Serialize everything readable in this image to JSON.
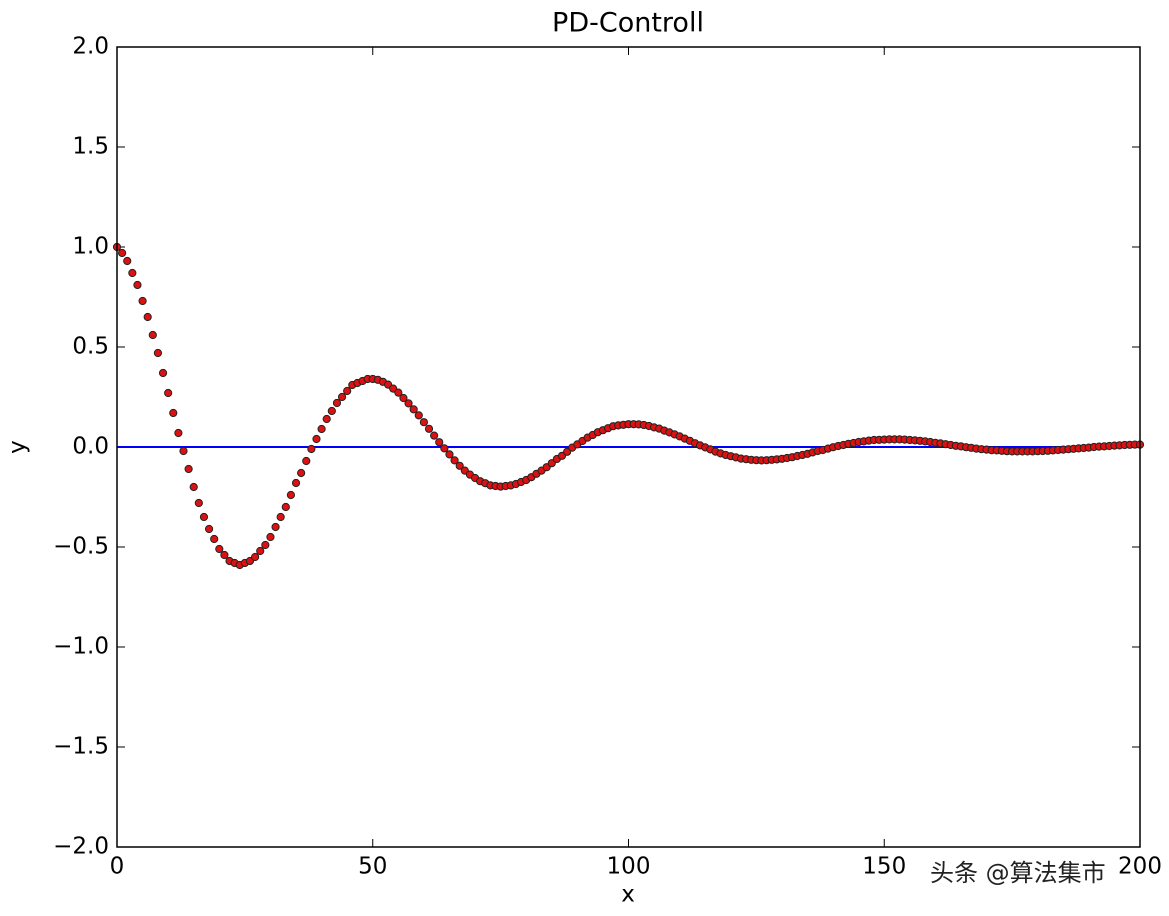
{
  "chart_data": {
    "type": "scatter",
    "title": "PD-Controll",
    "x_label": "x",
    "y_label": "y",
    "watermark": "头条 @算法集市",
    "xlim": [
      0,
      200
    ],
    "ylim": [
      -2,
      2
    ],
    "xticks": [
      0,
      50,
      100,
      150,
      200
    ],
    "yticks": [
      {
        "value": -2,
        "label": "−2.0"
      },
      {
        "value": -1.5,
        "label": "−1.5"
      },
      {
        "value": -1,
        "label": "−1.0"
      },
      {
        "value": -0.5,
        "label": "−0.5"
      },
      {
        "value": 0,
        "label": "0.0"
      },
      0.5,
      {
        "value": 1,
        "label": "1.0"
      },
      1.5,
      {
        "value": 2,
        "label": "2.0"
      }
    ],
    "reference_line": {
      "y": 0,
      "color": "#0000ff"
    },
    "marker_color": "#dd1111",
    "marker_edge_color": "#222222",
    "x": [
      0,
      1,
      2,
      3,
      4,
      5,
      6,
      7,
      8,
      9,
      10,
      11,
      12,
      13,
      14,
      15,
      16,
      17,
      18,
      19,
      20,
      21,
      22,
      23,
      24,
      25,
      26,
      27,
      28,
      29,
      30,
      31,
      32,
      33,
      34,
      35,
      36,
      37,
      38,
      39,
      40,
      41,
      42,
      43,
      44,
      45,
      46,
      47,
      48,
      49,
      50,
      51,
      52,
      53,
      54,
      55,
      56,
      57,
      58,
      59,
      60,
      61,
      62,
      63,
      64,
      65,
      66,
      67,
      68,
      69,
      70,
      71,
      72,
      73,
      74,
      75,
      76,
      77,
      78,
      79,
      80,
      81,
      82,
      83,
      84,
      85,
      86,
      87,
      88,
      89,
      90,
      91,
      92,
      93,
      94,
      95,
      96,
      97,
      98,
      99,
      100,
      101,
      102,
      103,
      104,
      105,
      106,
      107,
      108,
      109,
      110,
      111,
      112,
      113,
      114,
      115,
      116,
      117,
      118,
      119,
      120,
      121,
      122,
      123,
      124,
      125,
      126,
      127,
      128,
      129,
      130,
      131,
      132,
      133,
      134,
      135,
      136,
      137,
      138,
      139,
      140,
      141,
      142,
      143,
      144,
      145,
      146,
      147,
      148,
      149,
      150,
      151,
      152,
      153,
      154,
      155,
      156,
      157,
      158,
      159,
      160,
      161,
      162,
      163,
      164,
      165,
      166,
      167,
      168,
      169,
      170,
      171,
      172,
      173,
      174,
      175,
      176,
      177,
      178,
      179,
      180,
      181,
      182,
      183,
      184,
      185,
      186,
      187,
      188,
      189,
      190,
      191,
      192,
      193,
      194,
      195,
      196,
      197,
      198,
      199,
      200
    ],
    "values": [
      1.0,
      0.97,
      0.93,
      0.87,
      0.81,
      0.73,
      0.65,
      0.56,
      0.47,
      0.37,
      0.27,
      0.17,
      0.07,
      -0.02,
      -0.11,
      -0.2,
      -0.28,
      -0.35,
      -0.41,
      -0.46,
      -0.51,
      -0.54,
      -0.57,
      -0.58,
      -0.59,
      -0.58,
      -0.57,
      -0.55,
      -0.52,
      -0.49,
      -0.45,
      -0.4,
      -0.35,
      -0.3,
      -0.24,
      -0.18,
      -0.13,
      -0.07,
      -0.01,
      0.04,
      0.09,
      0.14,
      0.18,
      0.22,
      0.25,
      0.28,
      0.31,
      0.32,
      0.33,
      0.34,
      0.34,
      0.336,
      0.326,
      0.312,
      0.292,
      0.272,
      0.245,
      0.218,
      0.188,
      0.158,
      0.124,
      0.091,
      0.057,
      0.024,
      -0.007,
      -0.037,
      -0.067,
      -0.094,
      -0.118,
      -0.138,
      -0.155,
      -0.171,
      -0.181,
      -0.192,
      -0.195,
      -0.198,
      -0.195,
      -0.192,
      -0.185,
      -0.175,
      -0.165,
      -0.151,
      -0.134,
      -0.118,
      -0.101,
      -0.081,
      -0.06,
      -0.044,
      -0.024,
      -0.003,
      0.013,
      0.03,
      0.047,
      0.06,
      0.074,
      0.084,
      0.094,
      0.104,
      0.108,
      0.111,
      0.114,
      0.114,
      0.113,
      0.11,
      0.105,
      0.098,
      0.092,
      0.082,
      0.073,
      0.063,
      0.053,
      0.042,
      0.031,
      0.019,
      0.008,
      -0.002,
      -0.012,
      -0.023,
      -0.032,
      -0.04,
      -0.046,
      -0.052,
      -0.058,
      -0.061,
      -0.064,
      -0.066,
      -0.067,
      -0.066,
      -0.064,
      -0.062,
      -0.059,
      -0.055,
      -0.051,
      -0.045,
      -0.04,
      -0.034,
      -0.027,
      -0.02,
      -0.015,
      -0.008,
      -0.001,
      0.005,
      0.01,
      0.016,
      0.02,
      0.025,
      0.028,
      0.032,
      0.035,
      0.036,
      0.037,
      0.038,
      0.038,
      0.038,
      0.037,
      0.035,
      0.033,
      0.031,
      0.028,
      0.025,
      0.021,
      0.018,
      0.014,
      0.01,
      0.006,
      0.003,
      -0.001,
      -0.004,
      -0.008,
      -0.011,
      -0.013,
      -0.016,
      -0.017,
      -0.019,
      -0.021,
      -0.022,
      -0.022,
      -0.022,
      -0.022,
      -0.022,
      -0.021,
      -0.02,
      -0.019,
      -0.017,
      -0.015,
      -0.013,
      -0.011,
      -0.009,
      -0.007,
      -0.005,
      -0.003,
      0.0,
      0.002,
      0.003,
      0.005,
      0.007,
      0.008,
      0.01,
      0.011,
      0.012,
      0.012
    ]
  }
}
